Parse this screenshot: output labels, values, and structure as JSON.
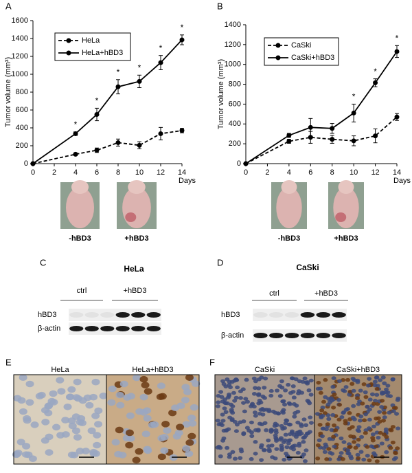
{
  "chart_data": [
    {
      "type": "line",
      "panel": "A",
      "xlabel": "Days",
      "ylabel": "Tumor volume (mm³)",
      "x": [
        0,
        4,
        6,
        8,
        10,
        12,
        14
      ],
      "xlim": [
        0,
        14
      ],
      "xticks": [
        0,
        2,
        4,
        6,
        8,
        10,
        12,
        14
      ],
      "ylim": [
        0,
        1600
      ],
      "yticks": [
        0,
        200,
        400,
        600,
        800,
        1000,
        1200,
        1400,
        1600
      ],
      "legend": "upper left",
      "series": [
        {
          "name": "HeLa",
          "color": "#000000",
          "dashed": true,
          "values": [
            0,
            105,
            150,
            235,
            205,
            335,
            370
          ],
          "errors": [
            0,
            15,
            25,
            40,
            40,
            70,
            25
          ]
        },
        {
          "name": "HeLa+hBD3",
          "color": "#000000",
          "dashed": false,
          "values": [
            0,
            335,
            550,
            860,
            920,
            1130,
            1385
          ],
          "errors": [
            0,
            20,
            70,
            80,
            70,
            80,
            55
          ]
        }
      ],
      "significance": [
        null,
        "*",
        "*",
        "*",
        "*",
        "*",
        "*"
      ]
    },
    {
      "type": "line",
      "panel": "B",
      "xlabel": "Days",
      "ylabel": "Tumor volume (mm³)",
      "x": [
        0,
        4,
        6,
        8,
        10,
        12,
        14
      ],
      "xlim": [
        0,
        14
      ],
      "xticks": [
        0,
        2,
        4,
        6,
        8,
        10,
        12,
        14
      ],
      "ylim": [
        0,
        1400
      ],
      "yticks": [
        0,
        200,
        400,
        600,
        800,
        1000,
        1200,
        1400
      ],
      "legend": "upper left",
      "series": [
        {
          "name": "CaSki",
          "color": "#000000",
          "dashed": true,
          "values": [
            0,
            225,
            265,
            245,
            230,
            280,
            470
          ],
          "errors": [
            0,
            20,
            60,
            40,
            50,
            70,
            35
          ]
        },
        {
          "name": "CaSki+hBD3",
          "color": "#000000",
          "dashed": false,
          "values": [
            0,
            285,
            365,
            355,
            510,
            815,
            1130
          ],
          "errors": [
            0,
            20,
            90,
            50,
            90,
            40,
            60
          ]
        }
      ],
      "significance": [
        null,
        null,
        null,
        null,
        "*",
        "*",
        "*"
      ]
    }
  ],
  "photos": [
    [
      "-hBD3",
      "+hBD3"
    ],
    [
      "-hBD3",
      "+hBD3"
    ]
  ],
  "blots": [
    {
      "panel": "C",
      "title": "HeLa",
      "groups": [
        "ctrl",
        "+hBD3"
      ],
      "rows": [
        "hBD3",
        "β-actin"
      ]
    },
    {
      "panel": "D",
      "title": "CaSki",
      "groups": [
        "ctrl",
        "+hBD3"
      ],
      "rows": [
        "hBD3",
        "β-actin"
      ]
    }
  ],
  "ihc": [
    {
      "panel": "E",
      "panes": [
        "HeLa",
        "HeLa+hBD3"
      ]
    },
    {
      "panel": "F",
      "panes": [
        "CaSki",
        "CaSki+hBD3"
      ]
    }
  ]
}
